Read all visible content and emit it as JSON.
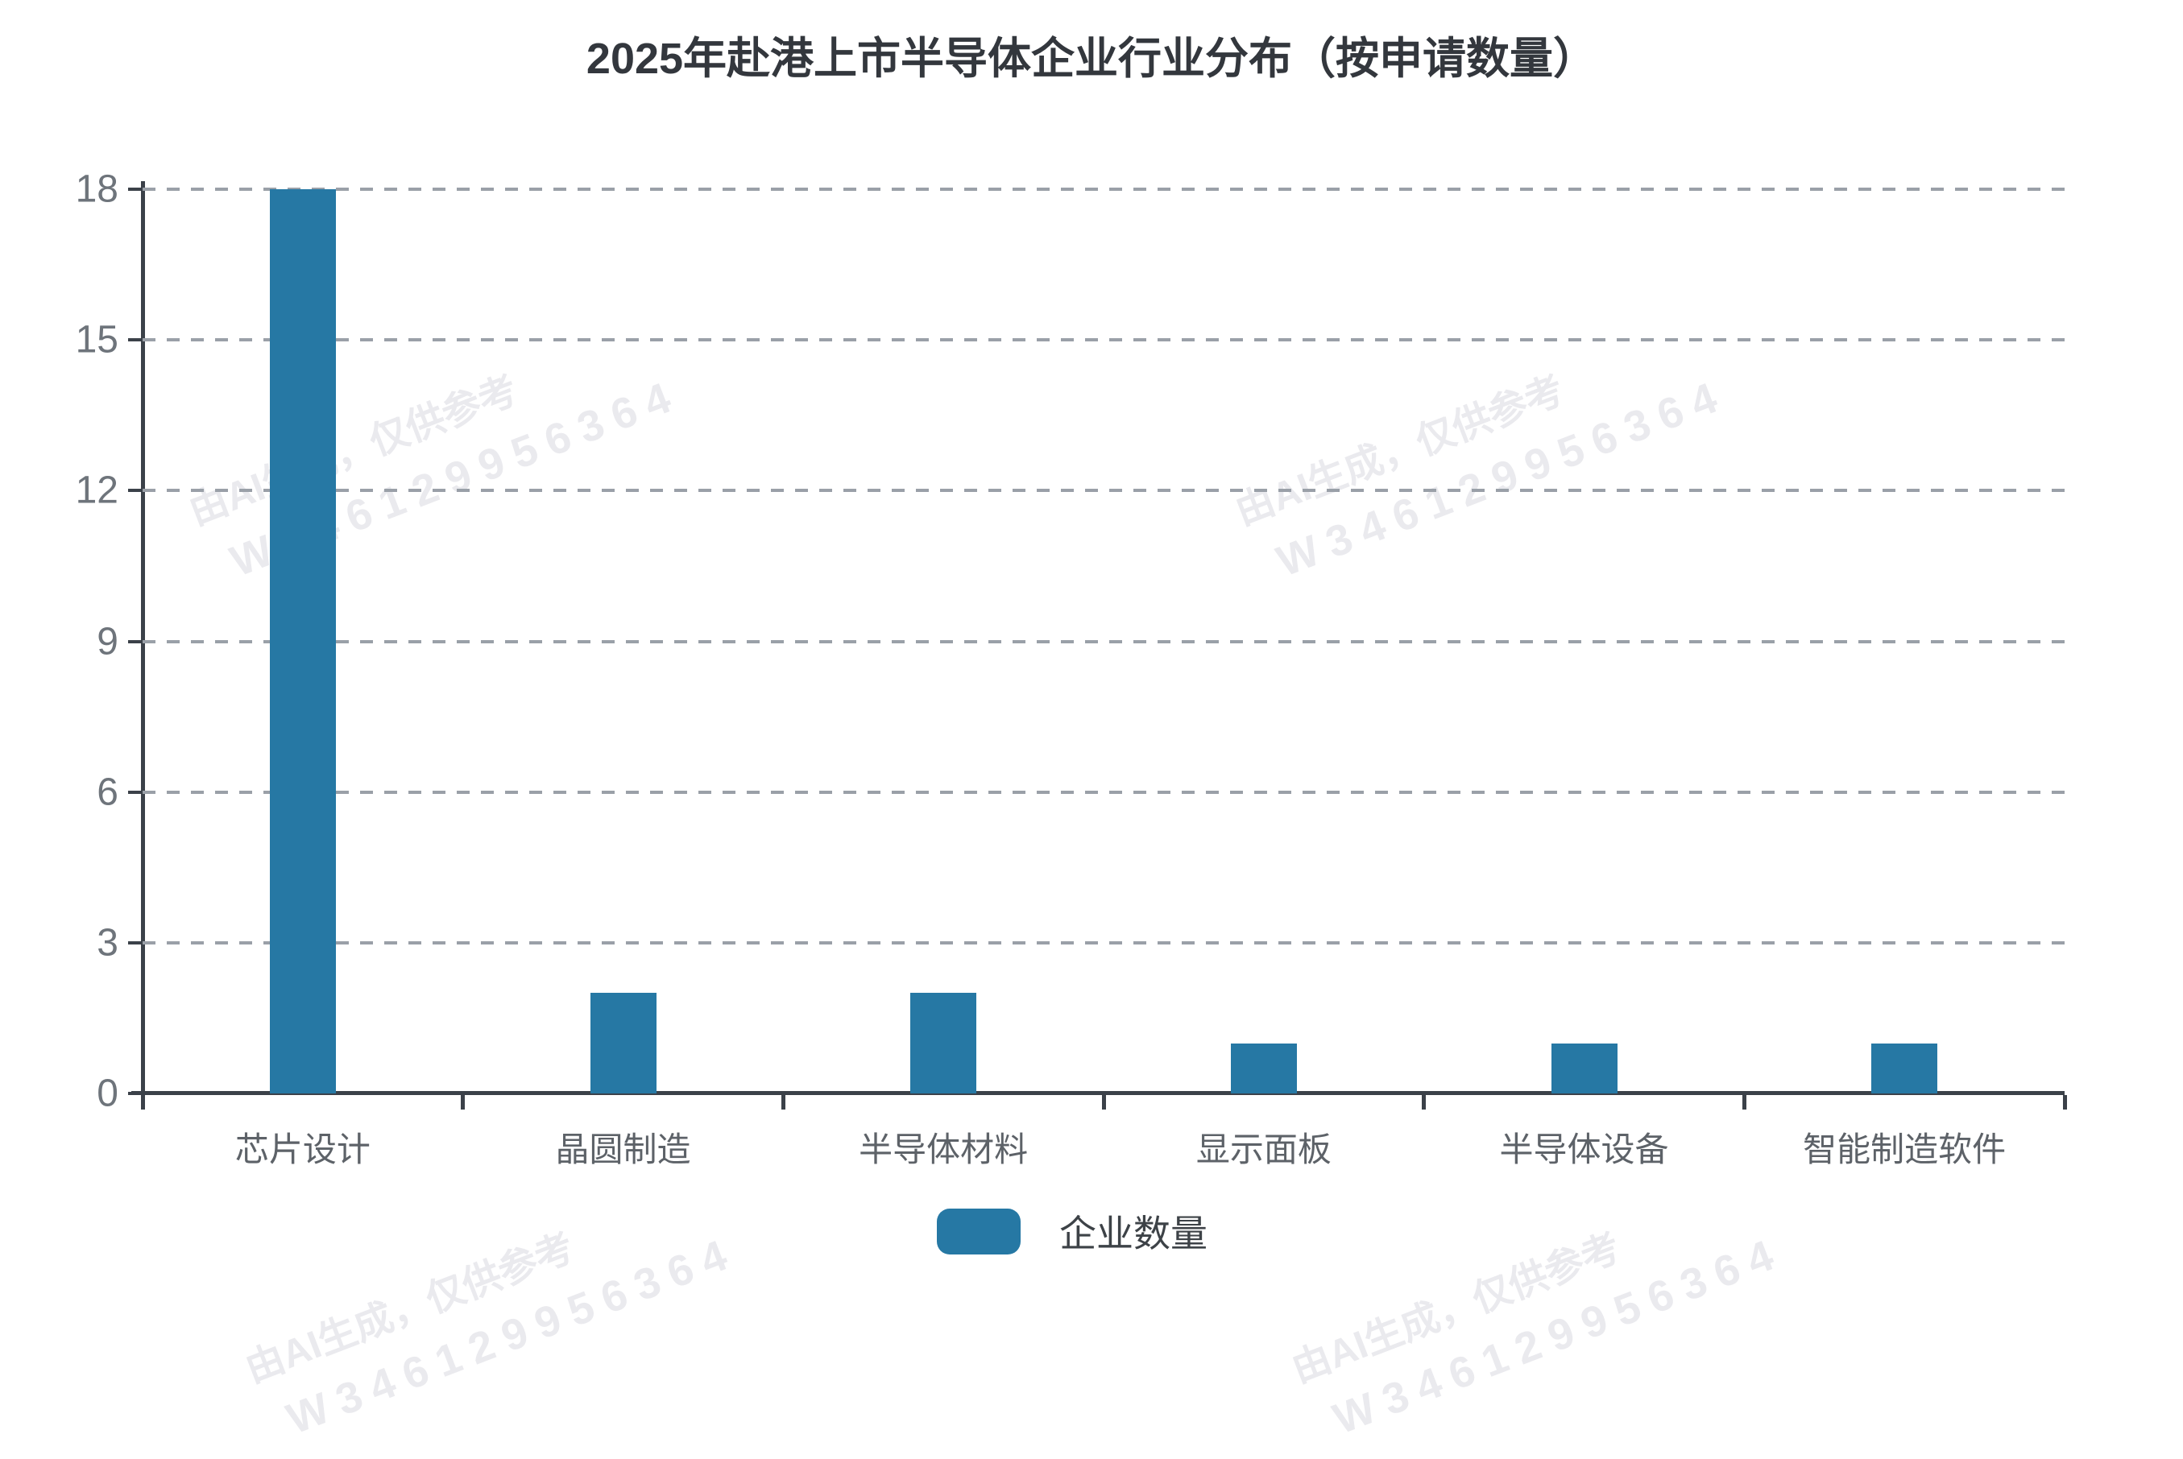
{
  "chart_data": {
    "type": "bar",
    "title": "2025年赴港上市半导体企业行业分布（按申请数量）",
    "categories": [
      "芯片设计",
      "晶圆制造",
      "半导体材料",
      "显示面板",
      "半导体设备",
      "智能制造软件"
    ],
    "series": [
      {
        "name": "企业数量",
        "values": [
          18,
          2,
          2,
          1,
          1,
          1
        ]
      }
    ],
    "xlabel": "",
    "ylabel": "",
    "ylim": [
      0,
      18
    ],
    "yticks": [
      0,
      3,
      6,
      9,
      12,
      15,
      18
    ],
    "grid": "horizontal-dashed",
    "legend_position": "bottom-center"
  },
  "watermark": {
    "line1": "由AI生成，仅供参考",
    "line2": "W346129956364"
  },
  "colors": {
    "bar": "#2678a4",
    "axis": "#3b4149",
    "grid": "#9aa0a8",
    "y_tick_label": "#6e747b",
    "x_tick_label": "#5d6268",
    "title": "#33373d",
    "legend_text": "#3d4247",
    "watermark": "#eaeaee"
  }
}
